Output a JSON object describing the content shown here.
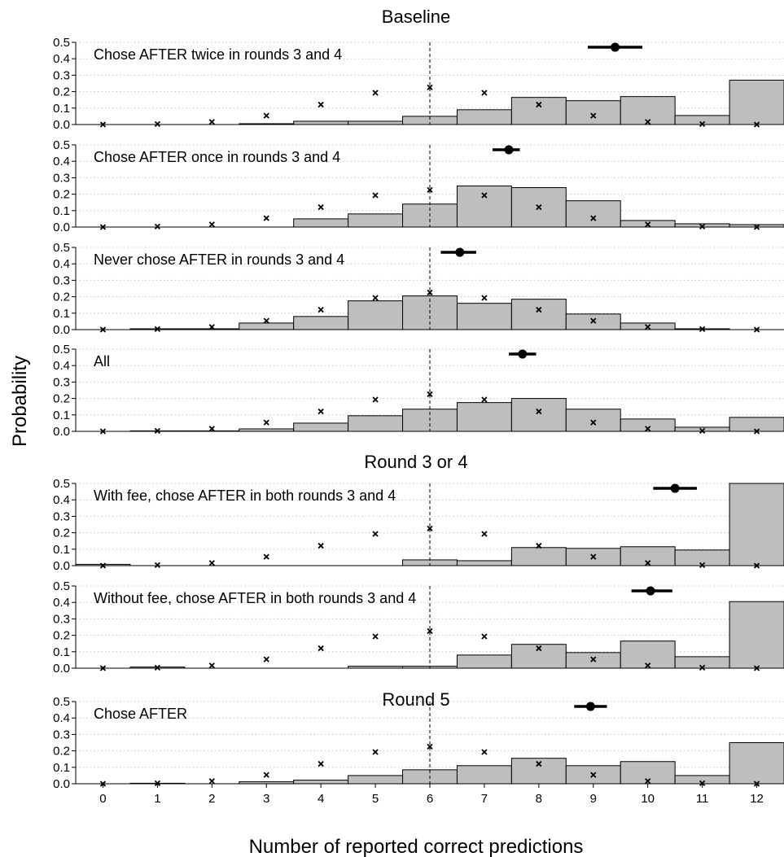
{
  "figure": {
    "ylabel": "Probability",
    "xlabel": "Number of reported correct predictions",
    "xticks": [
      "0",
      "1",
      "2",
      "3",
      "4",
      "5",
      "6",
      "7",
      "8",
      "9",
      "10",
      "11",
      "12"
    ],
    "yticks": [
      "0.0",
      "0.1",
      "0.2",
      "0.3",
      "0.4",
      "0.5"
    ],
    "group_titles": [
      "Baseline",
      "Round 3 or 4",
      "Round 5"
    ]
  },
  "chart_data": [
    {
      "type": "bar",
      "group": "Baseline",
      "title": "Chose AFTER twice in rounds 3 and 4",
      "categories": [
        0,
        1,
        2,
        3,
        4,
        5,
        6,
        7,
        8,
        9,
        10,
        11,
        12
      ],
      "series": [
        {
          "name": "",
          "kind": "bar",
          "values": [
            0,
            0,
            0,
            0.005,
            0.02,
            0.02,
            0.05,
            0.09,
            0.165,
            0.145,
            0.17,
            0.055,
            0.27
          ]
        },
        {
          "name": "",
          "kind": "marker-x",
          "values": [
            0.0002,
            0.003,
            0.016,
            0.054,
            0.121,
            0.193,
            0.226,
            0.193,
            0.121,
            0.054,
            0.016,
            0.003,
            0.0002
          ]
        }
      ],
      "mean_point": {
        "x": 9.4,
        "ci": [
          8.9,
          9.9
        ],
        "y": 0.47
      },
      "reference_line_x": 6,
      "ylim": [
        0,
        0.5
      ],
      "grid": "dotted horizontal"
    },
    {
      "type": "bar",
      "group": "Baseline",
      "title": "Chose AFTER once in rounds 3 and 4",
      "categories": [
        0,
        1,
        2,
        3,
        4,
        5,
        6,
        7,
        8,
        9,
        10,
        11,
        12
      ],
      "series": [
        {
          "name": "",
          "kind": "bar",
          "values": [
            0,
            0,
            0,
            0,
            0.05,
            0.08,
            0.14,
            0.25,
            0.24,
            0.16,
            0.04,
            0.02,
            0.015
          ]
        },
        {
          "name": "",
          "kind": "marker-x",
          "values": [
            0.0002,
            0.003,
            0.016,
            0.054,
            0.121,
            0.193,
            0.226,
            0.193,
            0.121,
            0.054,
            0.016,
            0.003,
            0.0002
          ]
        }
      ],
      "mean_point": {
        "x": 7.45,
        "ci": [
          7.15,
          7.65
        ],
        "y": 0.47
      },
      "reference_line_x": 6,
      "ylim": [
        0,
        0.5
      ],
      "grid": "dotted horizontal"
    },
    {
      "type": "bar",
      "group": "Baseline",
      "title": "Never chose AFTER in rounds 3 and 4",
      "categories": [
        0,
        1,
        2,
        3,
        4,
        5,
        6,
        7,
        8,
        9,
        10,
        11,
        12
      ],
      "series": [
        {
          "name": "",
          "kind": "bar",
          "values": [
            0,
            0.005,
            0.005,
            0.04,
            0.08,
            0.175,
            0.205,
            0.16,
            0.185,
            0.095,
            0.04,
            0.005,
            0
          ]
        },
        {
          "name": "",
          "kind": "marker-x",
          "values": [
            0.0002,
            0.003,
            0.016,
            0.054,
            0.121,
            0.193,
            0.226,
            0.193,
            0.121,
            0.054,
            0.016,
            0.003,
            0.0002
          ]
        }
      ],
      "mean_point": {
        "x": 6.55,
        "ci": [
          6.2,
          6.85
        ],
        "y": 0.47
      },
      "reference_line_x": 6,
      "ylim": [
        0,
        0.5
      ],
      "grid": "dotted horizontal"
    },
    {
      "type": "bar",
      "group": "Baseline",
      "title": "All",
      "categories": [
        0,
        1,
        2,
        3,
        4,
        5,
        6,
        7,
        8,
        9,
        10,
        11,
        12
      ],
      "series": [
        {
          "name": "",
          "kind": "bar",
          "values": [
            0,
            0.003,
            0.003,
            0.015,
            0.05,
            0.095,
            0.135,
            0.175,
            0.2,
            0.135,
            0.075,
            0.025,
            0.085
          ]
        },
        {
          "name": "",
          "kind": "marker-x",
          "values": [
            0.0002,
            0.003,
            0.016,
            0.054,
            0.121,
            0.193,
            0.226,
            0.193,
            0.121,
            0.054,
            0.016,
            0.003,
            0.0002
          ]
        }
      ],
      "mean_point": {
        "x": 7.7,
        "ci": [
          7.45,
          7.95
        ],
        "y": 0.47
      },
      "reference_line_x": 6,
      "ylim": [
        0,
        0.5
      ],
      "grid": "dotted horizontal"
    },
    {
      "type": "bar",
      "group": "Round 3 or 4",
      "title": "With fee, chose AFTER in both rounds 3 and 4",
      "categories": [
        0,
        1,
        2,
        3,
        4,
        5,
        6,
        7,
        8,
        9,
        10,
        11,
        12
      ],
      "series": [
        {
          "name": "",
          "kind": "bar",
          "values": [
            0.008,
            0,
            0,
            0,
            0,
            0,
            0.035,
            0.03,
            0.11,
            0.105,
            0.115,
            0.095,
            0.5
          ]
        },
        {
          "name": "",
          "kind": "marker-x",
          "values": [
            0.0002,
            0.003,
            0.016,
            0.054,
            0.121,
            0.193,
            0.226,
            0.193,
            0.121,
            0.054,
            0.016,
            0.003,
            0.0002
          ]
        }
      ],
      "mean_point": {
        "x": 10.5,
        "ci": [
          10.1,
          10.9
        ],
        "y": 0.47
      },
      "reference_line_x": 6,
      "ylim": [
        0,
        0.5
      ],
      "grid": "dotted horizontal"
    },
    {
      "type": "bar",
      "group": "Round 3 or 4",
      "title": "Without fee, chose AFTER in both rounds 3 and 4",
      "categories": [
        0,
        1,
        2,
        3,
        4,
        5,
        6,
        7,
        8,
        9,
        10,
        11,
        12
      ],
      "series": [
        {
          "name": "",
          "kind": "bar",
          "values": [
            0,
            0.007,
            0,
            0,
            0,
            0.012,
            0.012,
            0.08,
            0.145,
            0.095,
            0.165,
            0.07,
            0.405
          ]
        },
        {
          "name": "",
          "kind": "marker-x",
          "values": [
            0.0002,
            0.003,
            0.016,
            0.054,
            0.121,
            0.193,
            0.226,
            0.193,
            0.121,
            0.054,
            0.016,
            0.003,
            0.0002
          ]
        }
      ],
      "mean_point": {
        "x": 10.05,
        "ci": [
          9.7,
          10.45
        ],
        "y": 0.47
      },
      "reference_line_x": 6,
      "ylim": [
        0,
        0.5
      ],
      "grid": "dotted horizontal"
    },
    {
      "type": "bar",
      "group": "Round 5",
      "title": "Chose AFTER",
      "categories": [
        0,
        1,
        2,
        3,
        4,
        5,
        6,
        7,
        8,
        9,
        10,
        11,
        12
      ],
      "series": [
        {
          "name": "",
          "kind": "bar",
          "values": [
            0,
            0.003,
            0,
            0.012,
            0.022,
            0.05,
            0.085,
            0.11,
            0.155,
            0.11,
            0.135,
            0.05,
            0.25
          ]
        },
        {
          "name": "",
          "kind": "marker-x",
          "values": [
            0.0002,
            0.003,
            0.016,
            0.054,
            0.121,
            0.193,
            0.226,
            0.193,
            0.121,
            0.054,
            0.016,
            0.003,
            0.0002
          ]
        }
      ],
      "mean_point": {
        "x": 8.95,
        "ci": [
          8.65,
          9.25
        ],
        "y": 0.47
      },
      "reference_line_x": 6,
      "ylim": [
        0,
        0.5
      ],
      "grid": "dotted horizontal"
    }
  ]
}
